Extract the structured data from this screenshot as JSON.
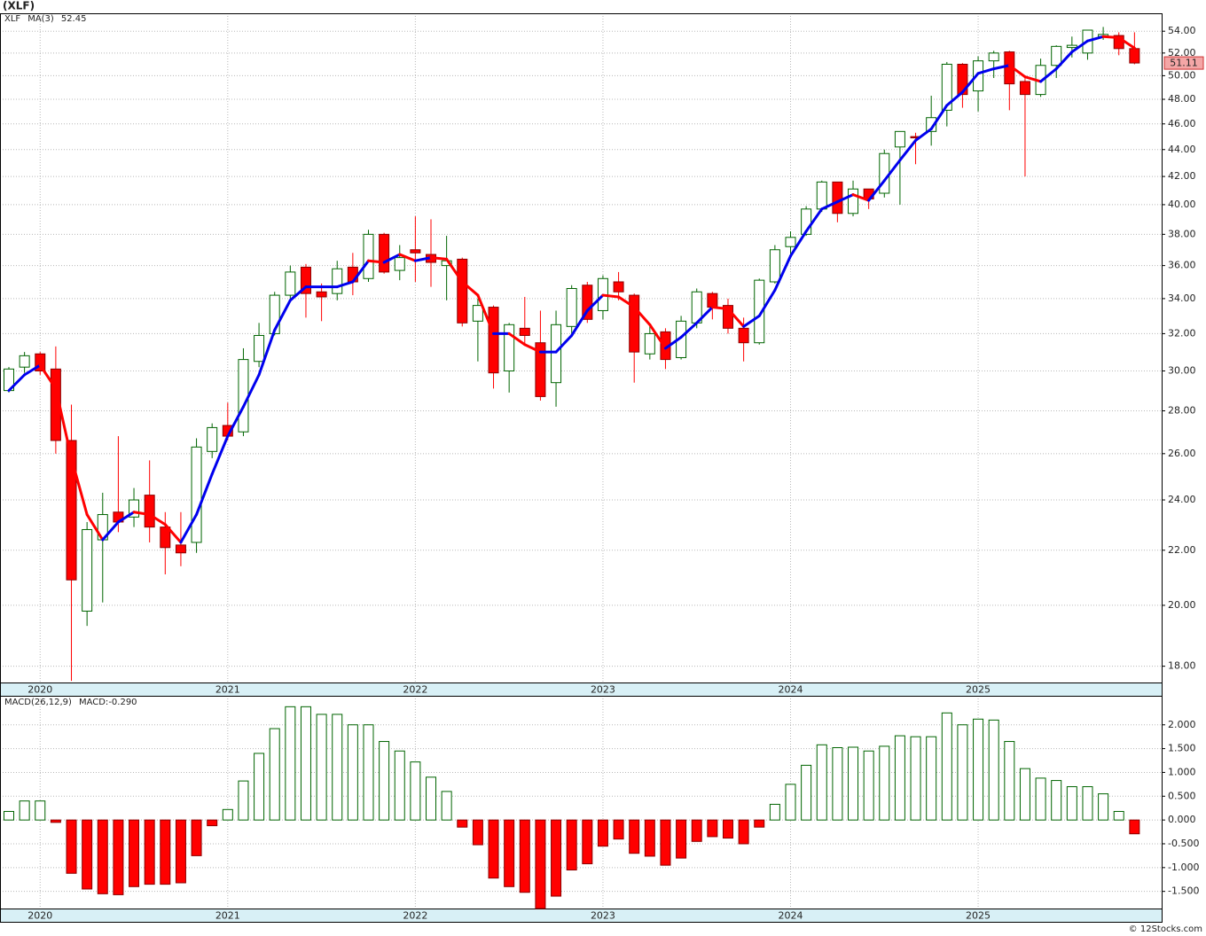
{
  "watermark": "© 12Stocks.com",
  "chart_data": [
    {
      "type": "candlestick",
      "title": "(XLF)",
      "symbol": "XLF",
      "symbol_color": "#008000",
      "categories": [
        null,
        null,
        "2020",
        null,
        null,
        null,
        null,
        null,
        null,
        null,
        null,
        null,
        null,
        null,
        "2021",
        null,
        null,
        null,
        null,
        null,
        null,
        null,
        null,
        null,
        null,
        null,
        "2022",
        null,
        null,
        null,
        null,
        null,
        null,
        null,
        null,
        null,
        null,
        null,
        "2023",
        null,
        null,
        null,
        null,
        null,
        null,
        null,
        null,
        null,
        null,
        null,
        "2024",
        null,
        null,
        null,
        null,
        null,
        null,
        null,
        null,
        null,
        null,
        null,
        "2025",
        null,
        null,
        null,
        null,
        null,
        null,
        null,
        null,
        null,
        null
      ],
      "open": [
        29.0,
        30.2,
        30.9,
        30.1,
        26.6,
        19.8,
        22.4,
        23.5,
        23.3,
        24.2,
        22.9,
        22.2,
        22.3,
        26.1,
        27.3,
        27.0,
        30.5,
        32.0,
        34.2,
        35.9,
        34.4,
        34.3,
        35.9,
        35.2,
        38.0,
        35.7,
        37.0,
        36.7,
        36.0,
        36.4,
        32.7,
        33.5,
        30.0,
        32.3,
        31.5,
        29.4,
        32.4,
        34.8,
        33.3,
        35.0,
        34.2,
        30.9,
        32.1,
        30.7,
        32.6,
        34.3,
        33.6,
        32.3,
        31.5,
        35.0,
        37.2,
        38.0,
        39.7,
        41.6,
        39.4,
        41.1,
        40.8,
        44.2,
        45.0,
        45.4,
        47.1,
        51.0,
        48.7,
        51.3,
        52.1,
        49.5,
        48.4,
        50.9,
        52.5,
        52.0,
        53.5,
        53.6,
        52.4
      ],
      "high": [
        30.2,
        31.0,
        31.0,
        31.3,
        28.3,
        23.1,
        24.3,
        26.8,
        24.5,
        25.7,
        23.5,
        23.5,
        26.7,
        27.4,
        28.4,
        31.2,
        32.6,
        34.4,
        36.0,
        36.1,
        34.9,
        36.3,
        36.8,
        38.3,
        38.1,
        37.3,
        39.2,
        39.0,
        37.9,
        36.5,
        34.0,
        33.6,
        32.6,
        34.1,
        33.3,
        33.3,
        34.8,
        35.0,
        35.4,
        35.6,
        34.3,
        32.5,
        32.3,
        33.0,
        34.6,
        34.4,
        34.0,
        32.9,
        35.2,
        37.3,
        38.2,
        39.9,
        41.7,
        41.6,
        41.7,
        41.1,
        44.0,
        45.4,
        45.3,
        48.3,
        51.2,
        51.1,
        51.7,
        52.2,
        52.2,
        49.8,
        51.5,
        52.7,
        53.5,
        54.1,
        54.4,
        53.9,
        53.9
      ],
      "low": [
        28.9,
        29.9,
        29.8,
        26.0,
        17.55,
        19.3,
        20.1,
        22.7,
        22.9,
        22.3,
        21.1,
        21.4,
        21.9,
        25.8,
        26.6,
        26.8,
        30.2,
        31.9,
        33.9,
        32.9,
        32.7,
        33.9,
        34.2,
        35.0,
        35.5,
        35.1,
        35.0,
        34.7,
        33.9,
        32.4,
        30.5,
        29.1,
        28.9,
        31.4,
        28.5,
        28.2,
        31.8,
        32.6,
        32.8,
        33.9,
        29.4,
        30.6,
        30.1,
        30.6,
        32.3,
        32.8,
        32.0,
        30.5,
        31.4,
        34.9,
        36.6,
        37.9,
        39.5,
        38.8,
        39.2,
        39.7,
        40.5,
        40.0,
        42.9,
        44.3,
        45.8,
        47.3,
        47.0,
        49.8,
        47.1,
        42.0,
        48.2,
        49.8,
        51.6,
        51.4,
        53.2,
        51.8,
        51.0
      ],
      "close": [
        30.1,
        30.8,
        30.0,
        26.6,
        20.9,
        22.8,
        23.4,
        23.1,
        24.0,
        22.9,
        22.1,
        21.9,
        26.3,
        27.2,
        26.8,
        30.6,
        31.9,
        34.2,
        35.6,
        34.3,
        34.1,
        35.8,
        35.0,
        38.0,
        35.6,
        36.5,
        36.8,
        36.2,
        36.3,
        32.6,
        33.6,
        29.9,
        32.5,
        31.9,
        28.7,
        32.5,
        34.6,
        32.8,
        35.2,
        34.4,
        31.0,
        32.0,
        30.6,
        32.7,
        34.4,
        33.5,
        32.3,
        31.5,
        35.1,
        37.0,
        37.8,
        39.7,
        41.6,
        39.4,
        41.1,
        40.4,
        43.7,
        45.4,
        44.9,
        46.5,
        51.0,
        48.4,
        51.3,
        52.0,
        49.3,
        48.4,
        50.9,
        52.6,
        52.7,
        54.1,
        53.7,
        52.4,
        51.11
      ],
      "up_color": "#006400",
      "down_color": "#ff0000",
      "ma": {
        "name": "MA(3)",
        "color": "#0000ee",
        "up_color": "#0000ee",
        "down_color": "#ff0000",
        "values": [
          29.0,
          29.8,
          30.3,
          29.1,
          25.8,
          23.4,
          22.4,
          23.1,
          23.5,
          23.4,
          23.0,
          22.3,
          23.4,
          25.1,
          26.8,
          28.2,
          29.8,
          32.2,
          33.9,
          34.7,
          34.7,
          34.7,
          35.0,
          36.3,
          36.2,
          36.7,
          36.3,
          36.5,
          36.4,
          35.0,
          34.2,
          32.0,
          32.0,
          31.4,
          31.0,
          31.0,
          31.9,
          33.3,
          34.2,
          34.1,
          33.5,
          32.5,
          31.2,
          31.8,
          32.6,
          33.5,
          33.4,
          32.4,
          33.0,
          34.5,
          36.6,
          38.2,
          39.7,
          40.2,
          40.7,
          40.3,
          41.7,
          43.2,
          44.7,
          45.6,
          47.5,
          48.6,
          50.2,
          50.6,
          50.9,
          49.9,
          49.5,
          50.6,
          52.1,
          53.1,
          53.5,
          53.4,
          52.45
        ]
      },
      "log_scale": true,
      "grid": true,
      "ylim": [
        17.5,
        55.7
      ],
      "yticks": [
        {
          "value": 18,
          "label": "18.00"
        },
        {
          "value": 20,
          "label": "20.00"
        },
        {
          "value": 22,
          "label": "22.00"
        },
        {
          "value": 24,
          "label": "24.00"
        },
        {
          "value": 26,
          "label": "26.00"
        },
        {
          "value": 28,
          "label": "28.00"
        },
        {
          "value": 30,
          "label": "30.00"
        },
        {
          "value": 32,
          "label": "32.00"
        },
        {
          "value": 34,
          "label": "34.00"
        },
        {
          "value": 36,
          "label": "36.00"
        },
        {
          "value": 38,
          "label": "38.00"
        },
        {
          "value": 40,
          "label": "40.00"
        },
        {
          "value": 42,
          "label": "42.00"
        },
        {
          "value": 44,
          "label": "44.00"
        },
        {
          "value": 46,
          "label": "46.00"
        },
        {
          "value": 48,
          "label": "48.00"
        },
        {
          "value": 50,
          "label": "50.00"
        },
        {
          "value": 52,
          "label": "52.00"
        },
        {
          "value": 54,
          "label": "54.00"
        }
      ]
    },
    {
      "type": "histogram-bar",
      "name": "MACD(26,12,9)",
      "name_color": "#000000",
      "readout_name": "MACD:",
      "readout": {
        "value": -0.29,
        "label": "-0.290"
      },
      "readout_color": "#0000ee",
      "up_color": "#006400",
      "down_color": "#ff0000",
      "values": [
        0.18,
        0.4,
        0.4,
        -0.05,
        -1.12,
        -1.45,
        -1.55,
        -1.57,
        -1.4,
        -1.35,
        -1.35,
        -1.32,
        -0.75,
        -0.12,
        0.22,
        0.82,
        1.4,
        1.92,
        2.38,
        2.38,
        2.22,
        2.22,
        2.0,
        2.0,
        1.65,
        1.45,
        1.22,
        0.9,
        0.6,
        -0.15,
        -0.52,
        -1.22,
        -1.4,
        -1.52,
        -1.86,
        -1.6,
        -1.05,
        -0.92,
        -0.55,
        -0.4,
        -0.7,
        -0.76,
        -0.95,
        -0.8,
        -0.45,
        -0.35,
        -0.38,
        -0.5,
        -0.15,
        0.33,
        0.75,
        1.15,
        1.58,
        1.52,
        1.53,
        1.45,
        1.55,
        1.77,
        1.75,
        1.75,
        2.25,
        2.0,
        2.12,
        2.1,
        1.65,
        1.08,
        0.88,
        0.83,
        0.7,
        0.7,
        0.55,
        0.18,
        -0.29
      ],
      "grid": true,
      "ylim": [
        -1.86,
        2.61
      ],
      "yticks": [
        {
          "value": -1.5,
          "label": "-1.500"
        },
        {
          "value": -1,
          "label": "-1.000"
        },
        {
          "value": -0.5,
          "label": "-0.500"
        },
        {
          "value": 0,
          "label": "0.000"
        },
        {
          "value": 0.5,
          "label": "0.500"
        },
        {
          "value": 1,
          "label": "1.000"
        },
        {
          "value": 1.5,
          "label": "1.500"
        },
        {
          "value": 2,
          "label": "2.000"
        }
      ]
    }
  ]
}
